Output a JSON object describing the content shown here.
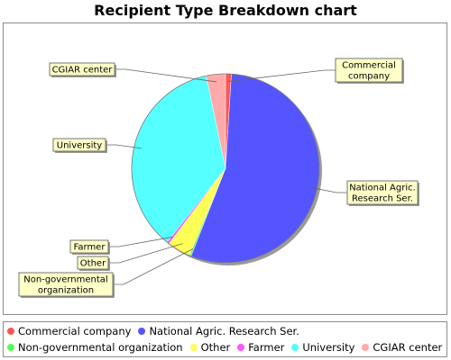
{
  "chart_data": {
    "type": "pie",
    "title": "Recipient Type Breakdown chart",
    "start_angle_deg": 90,
    "direction": "clockwise",
    "slices": [
      {
        "label": "Commercial company",
        "callout": [
          "Commercial",
          "company"
        ],
        "value": 1,
        "color": "#ff5555"
      },
      {
        "label": "National Agric. Research Ser.",
        "callout": [
          "National Agric.",
          "Research Ser."
        ],
        "value": 55,
        "color": "#5555ff"
      },
      {
        "label": "Non-governmental organization",
        "callout": [
          "Non-governmental",
          "organization"
        ],
        "value": 0.3,
        "color": "#55ff55"
      },
      {
        "label": "Other",
        "callout": [
          "Other"
        ],
        "value": 4,
        "color": "#ffff55"
      },
      {
        "label": "Farmer",
        "callout": [
          "Farmer"
        ],
        "value": 0.4,
        "color": "#ff55ff"
      },
      {
        "label": "University",
        "callout": [
          "University"
        ],
        "value": 36,
        "color": "#55ffff"
      },
      {
        "label": "CGIAR center",
        "callout": [
          "CGIAR center"
        ],
        "value": 3.3,
        "color": "#ffaaaa"
      }
    ],
    "legend_placement": "bottom"
  }
}
